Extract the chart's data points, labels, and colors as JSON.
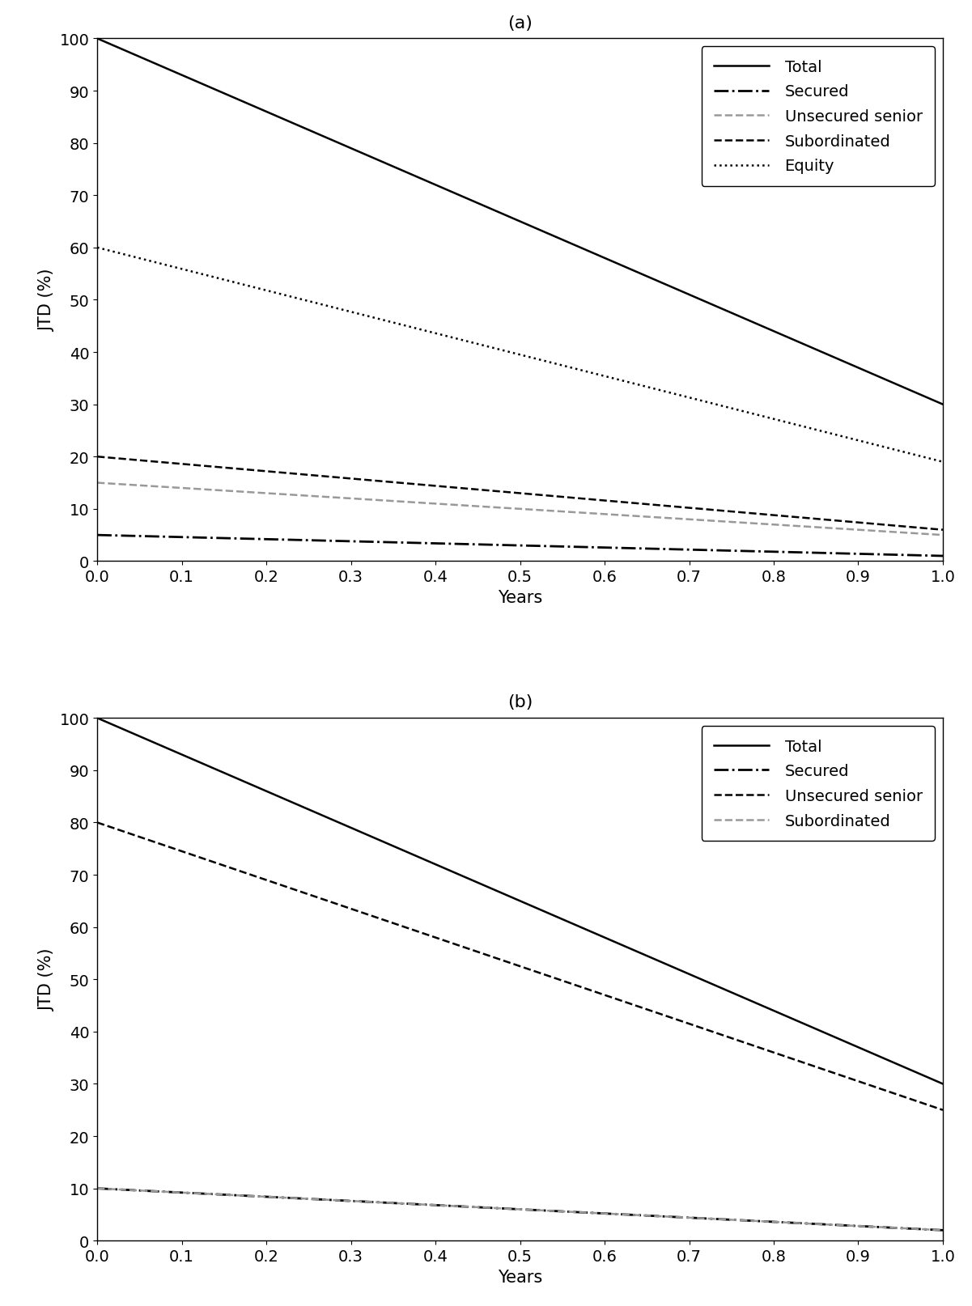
{
  "title_a": "(a)",
  "title_b": "(b)",
  "xlabel": "Years",
  "ylabel": "JTD (%)",
  "xlim": [
    0,
    1.0
  ],
  "ylim_a": [
    0,
    100
  ],
  "ylim_b": [
    0,
    100
  ],
  "x": [
    0,
    1
  ],
  "panel_a": {
    "Total": {
      "y": [
        100,
        30
      ],
      "color": "#000000",
      "linestyle": "solid",
      "linewidth": 1.8,
      "dashes": null
    },
    "Secured": {
      "y": [
        5,
        1
      ],
      "color": "#000000",
      "linestyle": "dashdot",
      "linewidth": 2.0,
      "dashes": null
    },
    "Unsecured senior": {
      "y": [
        15,
        5
      ],
      "color": "#999999",
      "linestyle": "dashed",
      "linewidth": 1.8,
      "dashes": [
        6,
        3
      ]
    },
    "Subordinated": {
      "y": [
        20,
        6
      ],
      "color": "#000000",
      "linestyle": "dashed",
      "linewidth": 1.8,
      "dashes": [
        10,
        4
      ]
    },
    "Equity": {
      "y": [
        60,
        19
      ],
      "color": "#000000",
      "linestyle": "dotted",
      "linewidth": 1.8,
      "dashes": null
    }
  },
  "panel_b": {
    "Total": {
      "y": [
        100,
        30
      ],
      "color": "#000000",
      "linestyle": "solid",
      "linewidth": 1.8,
      "dashes": null
    },
    "Secured": {
      "y": [
        10,
        2
      ],
      "color": "#000000",
      "linestyle": "dashdot",
      "linewidth": 2.0,
      "dashes": null
    },
    "Unsecured senior": {
      "y": [
        80,
        25
      ],
      "color": "#000000",
      "linestyle": "dashed",
      "linewidth": 1.8,
      "dashes": [
        10,
        4
      ]
    },
    "Subordinated": {
      "y": [
        10,
        2
      ],
      "color": "#999999",
      "linestyle": "dashed",
      "linewidth": 1.8,
      "dashes": [
        6,
        3
      ]
    }
  },
  "xticks": [
    0,
    0.1,
    0.2,
    0.3,
    0.4,
    0.5,
    0.6,
    0.7,
    0.8,
    0.9,
    1.0
  ],
  "yticks": [
    0,
    10,
    20,
    30,
    40,
    50,
    60,
    70,
    80,
    90,
    100
  ],
  "figsize": [
    12.01,
    16.15
  ],
  "dpi": 100,
  "title_fontsize": 16,
  "label_fontsize": 15,
  "tick_fontsize": 14,
  "legend_fontsize": 14
}
